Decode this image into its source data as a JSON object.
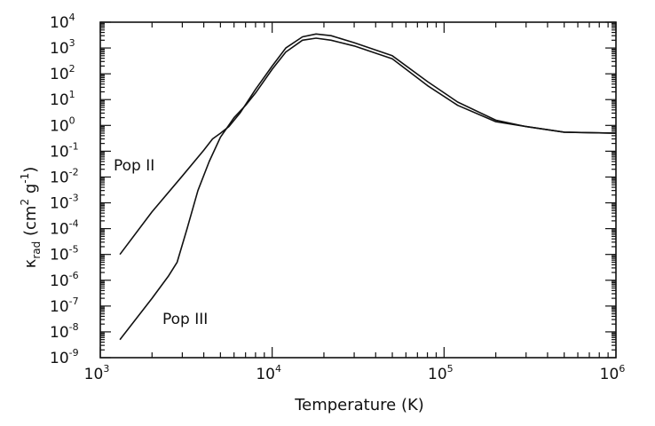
{
  "chart_data": {
    "type": "line",
    "title": "",
    "xlabel": "Temperature (K)",
    "ylabel": "κ_rad (cm² g⁻¹)",
    "xscale": "log",
    "yscale": "log",
    "xlim": [
      1000,
      1000000
    ],
    "ylim": [
      1e-09,
      10000
    ],
    "x_ticks": [
      {
        "value": 1000,
        "label_base": "10",
        "label_exp": "3"
      },
      {
        "value": 10000,
        "label_base": "10",
        "label_exp": "4"
      },
      {
        "value": 100000,
        "label_base": "10",
        "label_exp": "5"
      },
      {
        "value": 1000000,
        "label_base": "10",
        "label_exp": "6"
      }
    ],
    "y_ticks": [
      {
        "value": 10000,
        "label_base": "10",
        "label_exp": "4"
      },
      {
        "value": 1000,
        "label_base": "10",
        "label_exp": "3"
      },
      {
        "value": 100,
        "label_base": "10",
        "label_exp": "2"
      },
      {
        "value": 10,
        "label_base": "10",
        "label_exp": "1"
      },
      {
        "value": 1,
        "label_base": "10",
        "label_exp": "0"
      },
      {
        "value": 0.1,
        "label_base": "10",
        "label_exp": "-1"
      },
      {
        "value": 0.01,
        "label_base": "10",
        "label_exp": "-2"
      },
      {
        "value": 0.001,
        "label_base": "10",
        "label_exp": "-3"
      },
      {
        "value": 0.0001,
        "label_base": "10",
        "label_exp": "-4"
      },
      {
        "value": 1e-05,
        "label_base": "10",
        "label_exp": "-5"
      },
      {
        "value": 1e-06,
        "label_base": "10",
        "label_exp": "-6"
      },
      {
        "value": 1e-07,
        "label_base": "10",
        "label_exp": "-7"
      },
      {
        "value": 1e-08,
        "label_base": "10",
        "label_exp": "-8"
      },
      {
        "value": 1e-09,
        "label_base": "10",
        "label_exp": "-9"
      }
    ],
    "series": [
      {
        "name": "Pop II",
        "x": [
          1300,
          2000,
          3000,
          4000,
          4500,
          5000,
          5600,
          6500,
          8000,
          10000,
          12000,
          15000,
          18000,
          22000,
          30000,
          50000,
          80000,
          120000,
          200000,
          300000,
          500000,
          1000000
        ],
        "y": [
          1e-05,
          0.00045,
          0.011,
          0.11,
          0.3,
          0.5,
          0.9,
          3,
          25,
          200,
          1000,
          2700,
          3500,
          3000,
          1600,
          500,
          50,
          8,
          1.6,
          0.9,
          0.55,
          0.5
        ]
      },
      {
        "name": "Pop III",
        "x": [
          1300,
          2000,
          2500,
          2800,
          3200,
          3700,
          4300,
          5000,
          6000,
          7000,
          8000,
          10000,
          12000,
          15000,
          18000,
          22000,
          30000,
          50000,
          80000,
          120000,
          200000,
          300000,
          500000,
          1000000
        ],
        "y": [
          5e-09,
          2e-07,
          1.5e-06,
          5e-06,
          0.0001,
          0.003,
          0.04,
          0.35,
          2,
          6,
          18,
          150,
          700,
          2000,
          2400,
          2000,
          1200,
          380,
          35,
          6,
          1.4,
          0.9,
          0.55,
          0.5
        ]
      }
    ],
    "annotations": [
      {
        "text": "Pop II",
        "series": "Pop II"
      },
      {
        "text": "Pop III",
        "series": "Pop III"
      }
    ],
    "grid": false,
    "legend": "none"
  }
}
